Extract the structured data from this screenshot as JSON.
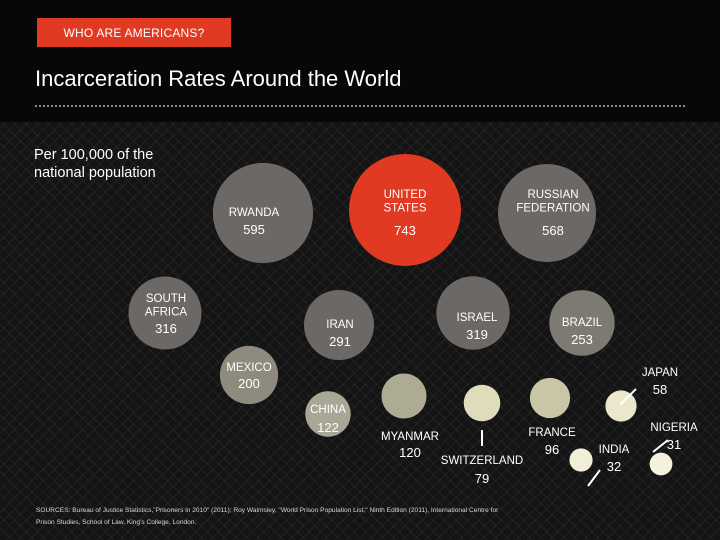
{
  "header": {
    "section_label": "WHO ARE AMERICANS?",
    "title": "Incarceration Rates Around the World"
  },
  "subtitle": "Per 100,000 of the national population",
  "sources": "SOURCES: Bureau of Justice Statistics,\"Prisoners in 2010\" (2011); Roy Walmsley, \"World Prison Population List,\" Ninth Edition (2011), International Centre for Prison Studies, School of Law, King's College, London.",
  "colors": {
    "highlight": "#e03a22",
    "background": "#141414",
    "header_band": "#070707"
  },
  "chart_data": {
    "type": "bubble",
    "title": "Incarceration Rates Around the World",
    "unit": "Per 100,000 of the national population",
    "series": [
      {
        "name": "UNITED STATES",
        "value": 743,
        "highlight": true
      },
      {
        "name": "RUSSIAN FEDERATION",
        "value": 568
      },
      {
        "name": "RWANDA",
        "value": 595
      },
      {
        "name": "SOUTH AFRICA",
        "value": 316
      },
      {
        "name": "ISRAEL",
        "value": 319
      },
      {
        "name": "IRAN",
        "value": 291
      },
      {
        "name": "BRAZIL",
        "value": 253
      },
      {
        "name": "MEXICO",
        "value": 200
      },
      {
        "name": "CHINA",
        "value": 122
      },
      {
        "name": "MYANMAR",
        "value": 120
      },
      {
        "name": "SWITZERLAND",
        "value": 79
      },
      {
        "name": "FRANCE",
        "value": 96
      },
      {
        "name": "JAPAN",
        "value": 58
      },
      {
        "name": "INDIA",
        "value": 32
      },
      {
        "name": "NIGERIA",
        "value": 31
      }
    ]
  }
}
